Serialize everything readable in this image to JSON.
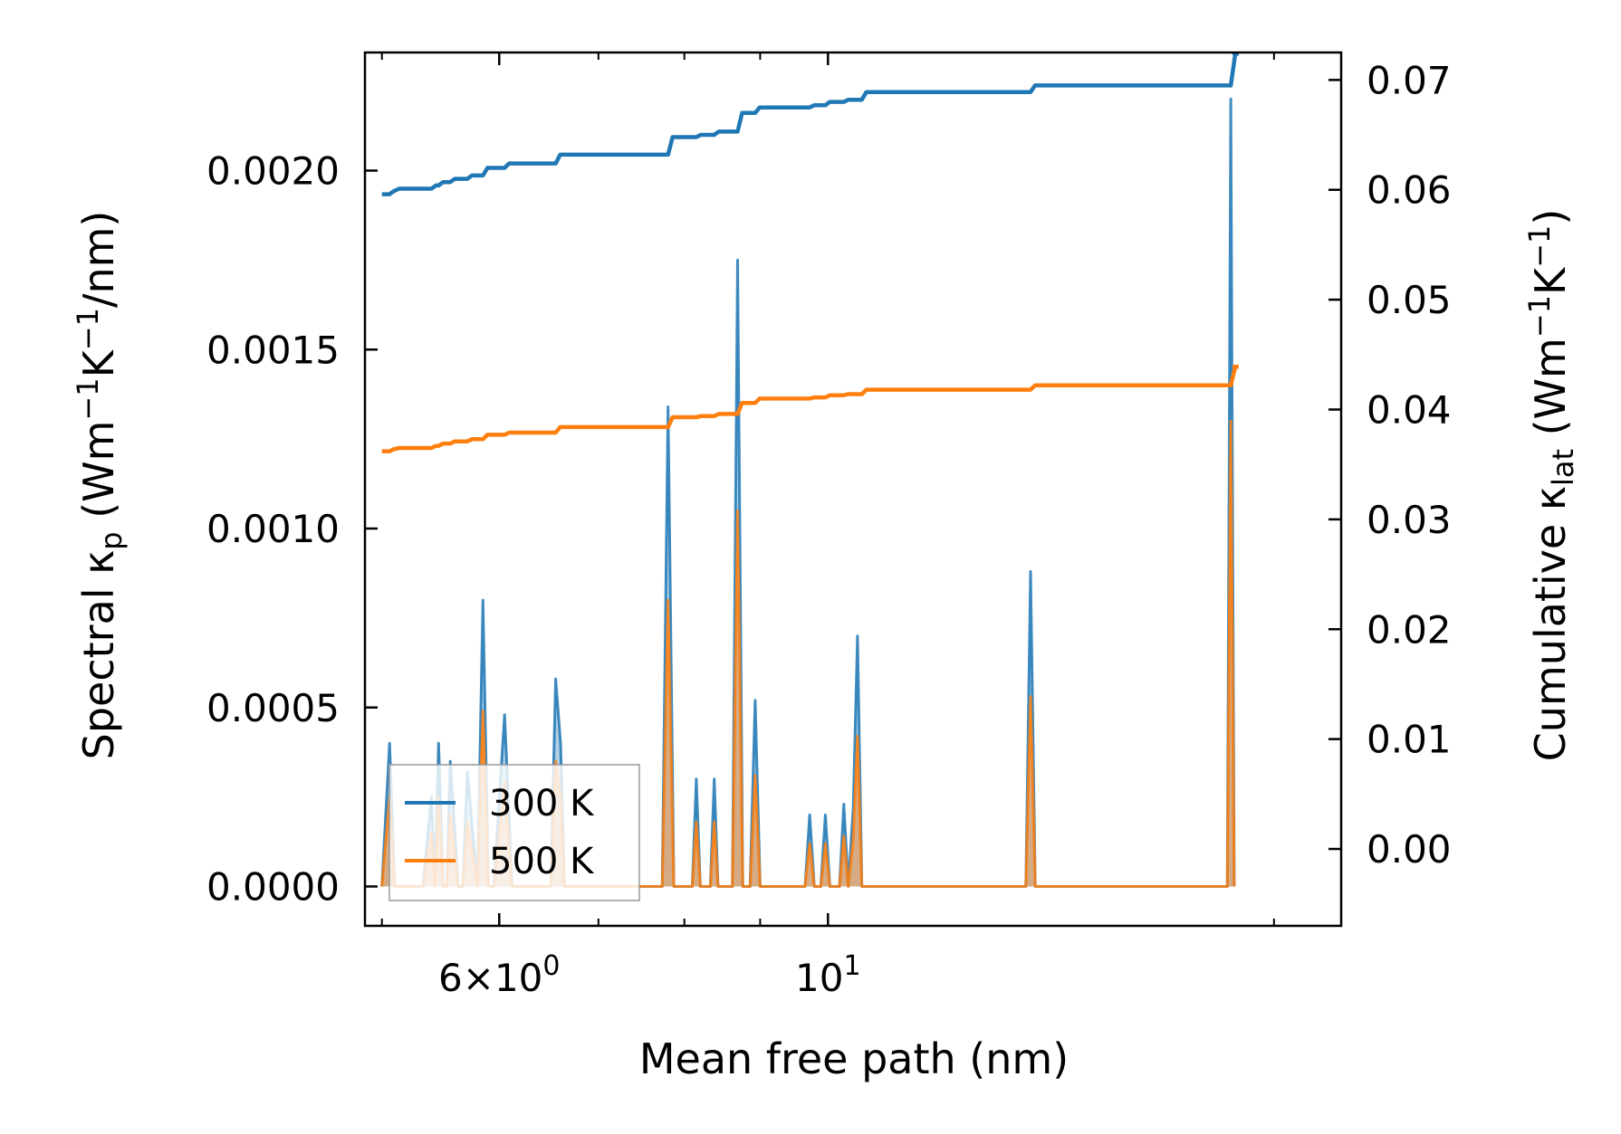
{
  "chart_data": {
    "type": "line",
    "xscale": "log",
    "xlabel": "Mean free path (nm)",
    "ylabel_left": {
      "prefix": "Spectral κ",
      "sub": "p",
      "mid": " (Wm",
      "sup1": "−1",
      "mid2": "K",
      "sup2": "−1",
      "suffix": "/nm)"
    },
    "ylabel_right": {
      "prefix": "Cumulative κ",
      "sub": "lat",
      "mid": " (Wm",
      "sup1": "−1",
      "mid2": "K",
      "sup2": "−1",
      "suffix": ")"
    },
    "xlim": [
      4.87,
      22.2
    ],
    "ylim_left": [
      -0.00011,
      0.00233
    ],
    "ylim_right": [
      -0.007,
      0.0725
    ],
    "x_ticks": [
      {
        "value": 6,
        "base": "6×10",
        "exp": "0"
      },
      {
        "value": 10,
        "base": "10",
        "exp": "1"
      }
    ],
    "x_minor_ticks": [
      5,
      7,
      8,
      9,
      20
    ],
    "y_left_ticks": [
      {
        "value": 0.0,
        "label": "0.0000"
      },
      {
        "value": 0.0005,
        "label": "0.0005"
      },
      {
        "value": 0.001,
        "label": "0.0010"
      },
      {
        "value": 0.0015,
        "label": "0.0015"
      },
      {
        "value": 0.002,
        "label": "0.0020"
      }
    ],
    "y_right_ticks": [
      {
        "value": 0.0,
        "label": "0.00"
      },
      {
        "value": 0.01,
        "label": "0.01"
      },
      {
        "value": 0.02,
        "label": "0.02"
      },
      {
        "value": 0.03,
        "label": "0.03"
      },
      {
        "value": 0.04,
        "label": "0.04"
      },
      {
        "value": 0.05,
        "label": "0.05"
      },
      {
        "value": 0.06,
        "label": "0.06"
      },
      {
        "value": 0.07,
        "label": "0.07"
      }
    ],
    "legend": {
      "location": "lower-left",
      "entries": [
        "300 K",
        "500 K"
      ]
    },
    "series": [
      {
        "name": "300 K",
        "color": "#1f77b4",
        "spectral": {
          "x": [
            5.0,
            5.06,
            5.1,
            5.13,
            5.18,
            5.33,
            5.4,
            5.43,
            5.46,
            5.5,
            5.53,
            5.56,
            5.63,
            5.67,
            5.71,
            5.8,
            5.85,
            5.9,
            5.95,
            6.05,
            6.12,
            6.17,
            6.22,
            6.5,
            6.55,
            6.6,
            6.64,
            6.71,
            7.73,
            7.8,
            7.87,
            8.1,
            8.15,
            8.2,
            8.33,
            8.38,
            8.43,
            8.62,
            8.69,
            8.76,
            8.86,
            8.93,
            9.0,
            9.65,
            9.72,
            9.79,
            9.89,
            9.96,
            10.03,
            10.18,
            10.25,
            10.32,
            10.4,
            10.47,
            10.54,
            10.62,
            10.68,
            10.75,
            13.6,
            13.7,
            13.8,
            18.6,
            18.7,
            18.8
          ],
          "y": [
            0.0,
            0.0004,
            0.0,
            0.0,
            0.0,
            0.0,
            0.00025,
            0.0,
            0.0004,
            0.0,
            0.0,
            0.00035,
            0.0,
            0.0,
            0.00032,
            0.0,
            0.0008,
            0.0,
            0.0,
            0.00048,
            0.0,
            0.0,
            0.0,
            0.0,
            0.00058,
            0.0004,
            0.0,
            0.0,
            0.0,
            0.00134,
            0.0,
            0.0,
            0.0003,
            0.0,
            0.0,
            0.0003,
            0.0,
            0.0,
            0.00175,
            0.0,
            0.0,
            0.00052,
            0.0,
            0.0,
            0.0002,
            0.0,
            0.0,
            0.0002,
            0.0,
            0.0,
            0.00023,
            0.0,
            0.00022,
            0.0007,
            0.0,
            0.0,
            0.0,
            0.0,
            0.0,
            0.00088,
            0.0,
            0.0,
            0.0022,
            0.0
          ]
        },
        "cumulative": {
          "x": [
            5.0,
            5.06,
            5.1,
            5.33,
            5.4,
            5.46,
            5.56,
            5.71,
            5.85,
            6.05,
            6.55,
            7.8,
            8.15,
            8.38,
            8.69,
            8.93,
            9.72,
            9.96,
            10.25,
            10.54,
            13.7,
            18.7,
            18.8
          ],
          "y": [
            0.0596,
            0.0599,
            0.0601,
            0.0601,
            0.0604,
            0.0607,
            0.061,
            0.0613,
            0.062,
            0.0624,
            0.0632,
            0.0648,
            0.065,
            0.0653,
            0.067,
            0.0675,
            0.0677,
            0.068,
            0.0682,
            0.0689,
            0.0695,
            0.0724,
            0.0724
          ]
        }
      },
      {
        "name": "500 K",
        "color": "#ff7f0e",
        "spectral": {
          "x": [
            5.0,
            5.06,
            5.1,
            5.13,
            5.18,
            5.33,
            5.4,
            5.43,
            5.46,
            5.5,
            5.53,
            5.56,
            5.63,
            5.67,
            5.71,
            5.8,
            5.85,
            5.9,
            5.95,
            6.05,
            6.12,
            6.17,
            6.22,
            6.5,
            6.55,
            6.6,
            6.64,
            6.71,
            7.73,
            7.8,
            7.87,
            8.1,
            8.15,
            8.2,
            8.33,
            8.38,
            8.43,
            8.62,
            8.69,
            8.76,
            8.86,
            8.93,
            9.0,
            9.65,
            9.72,
            9.79,
            9.89,
            9.96,
            10.03,
            10.18,
            10.25,
            10.32,
            10.4,
            10.47,
            10.54,
            10.62,
            10.68,
            10.75,
            13.6,
            13.7,
            13.8,
            18.6,
            18.7,
            18.8
          ],
          "y": [
            0.0,
            0.00025,
            0.0,
            0.0,
            0.0,
            0.0,
            0.00015,
            0.0,
            0.00025,
            0.0,
            0.0,
            0.0002,
            0.0,
            0.0,
            0.00018,
            0.0,
            0.00049,
            0.0,
            0.0,
            0.00029,
            0.0,
            0.0,
            0.0,
            0.0,
            0.00035,
            0.00025,
            0.0,
            0.0,
            0.0,
            0.0008,
            0.0,
            0.0,
            0.00018,
            0.0,
            0.0,
            0.00018,
            0.0,
            0.0,
            0.00105,
            0.0,
            0.0,
            0.00031,
            0.0,
            0.0,
            0.00012,
            0.0,
            0.0,
            0.00012,
            0.0,
            0.0,
            0.00014,
            0.0,
            0.00013,
            0.00042,
            0.0,
            0.0,
            0.0,
            0.0,
            0.0,
            0.00053,
            0.0,
            0.0,
            0.0013,
            0.0
          ]
        },
        "cumulative": {
          "x": [
            5.0,
            5.06,
            5.1,
            5.33,
            5.4,
            5.46,
            5.56,
            5.71,
            5.85,
            6.05,
            6.55,
            7.8,
            8.15,
            8.38,
            8.69,
            8.93,
            9.72,
            9.96,
            10.25,
            10.54,
            13.7,
            18.7,
            18.8
          ],
          "y": [
            0.0362,
            0.0364,
            0.0365,
            0.0365,
            0.0367,
            0.0369,
            0.0371,
            0.0373,
            0.0377,
            0.0379,
            0.0384,
            0.0393,
            0.0394,
            0.0396,
            0.0406,
            0.041,
            0.0411,
            0.0413,
            0.0414,
            0.0418,
            0.0422,
            0.0439,
            0.0439
          ]
        }
      }
    ]
  }
}
